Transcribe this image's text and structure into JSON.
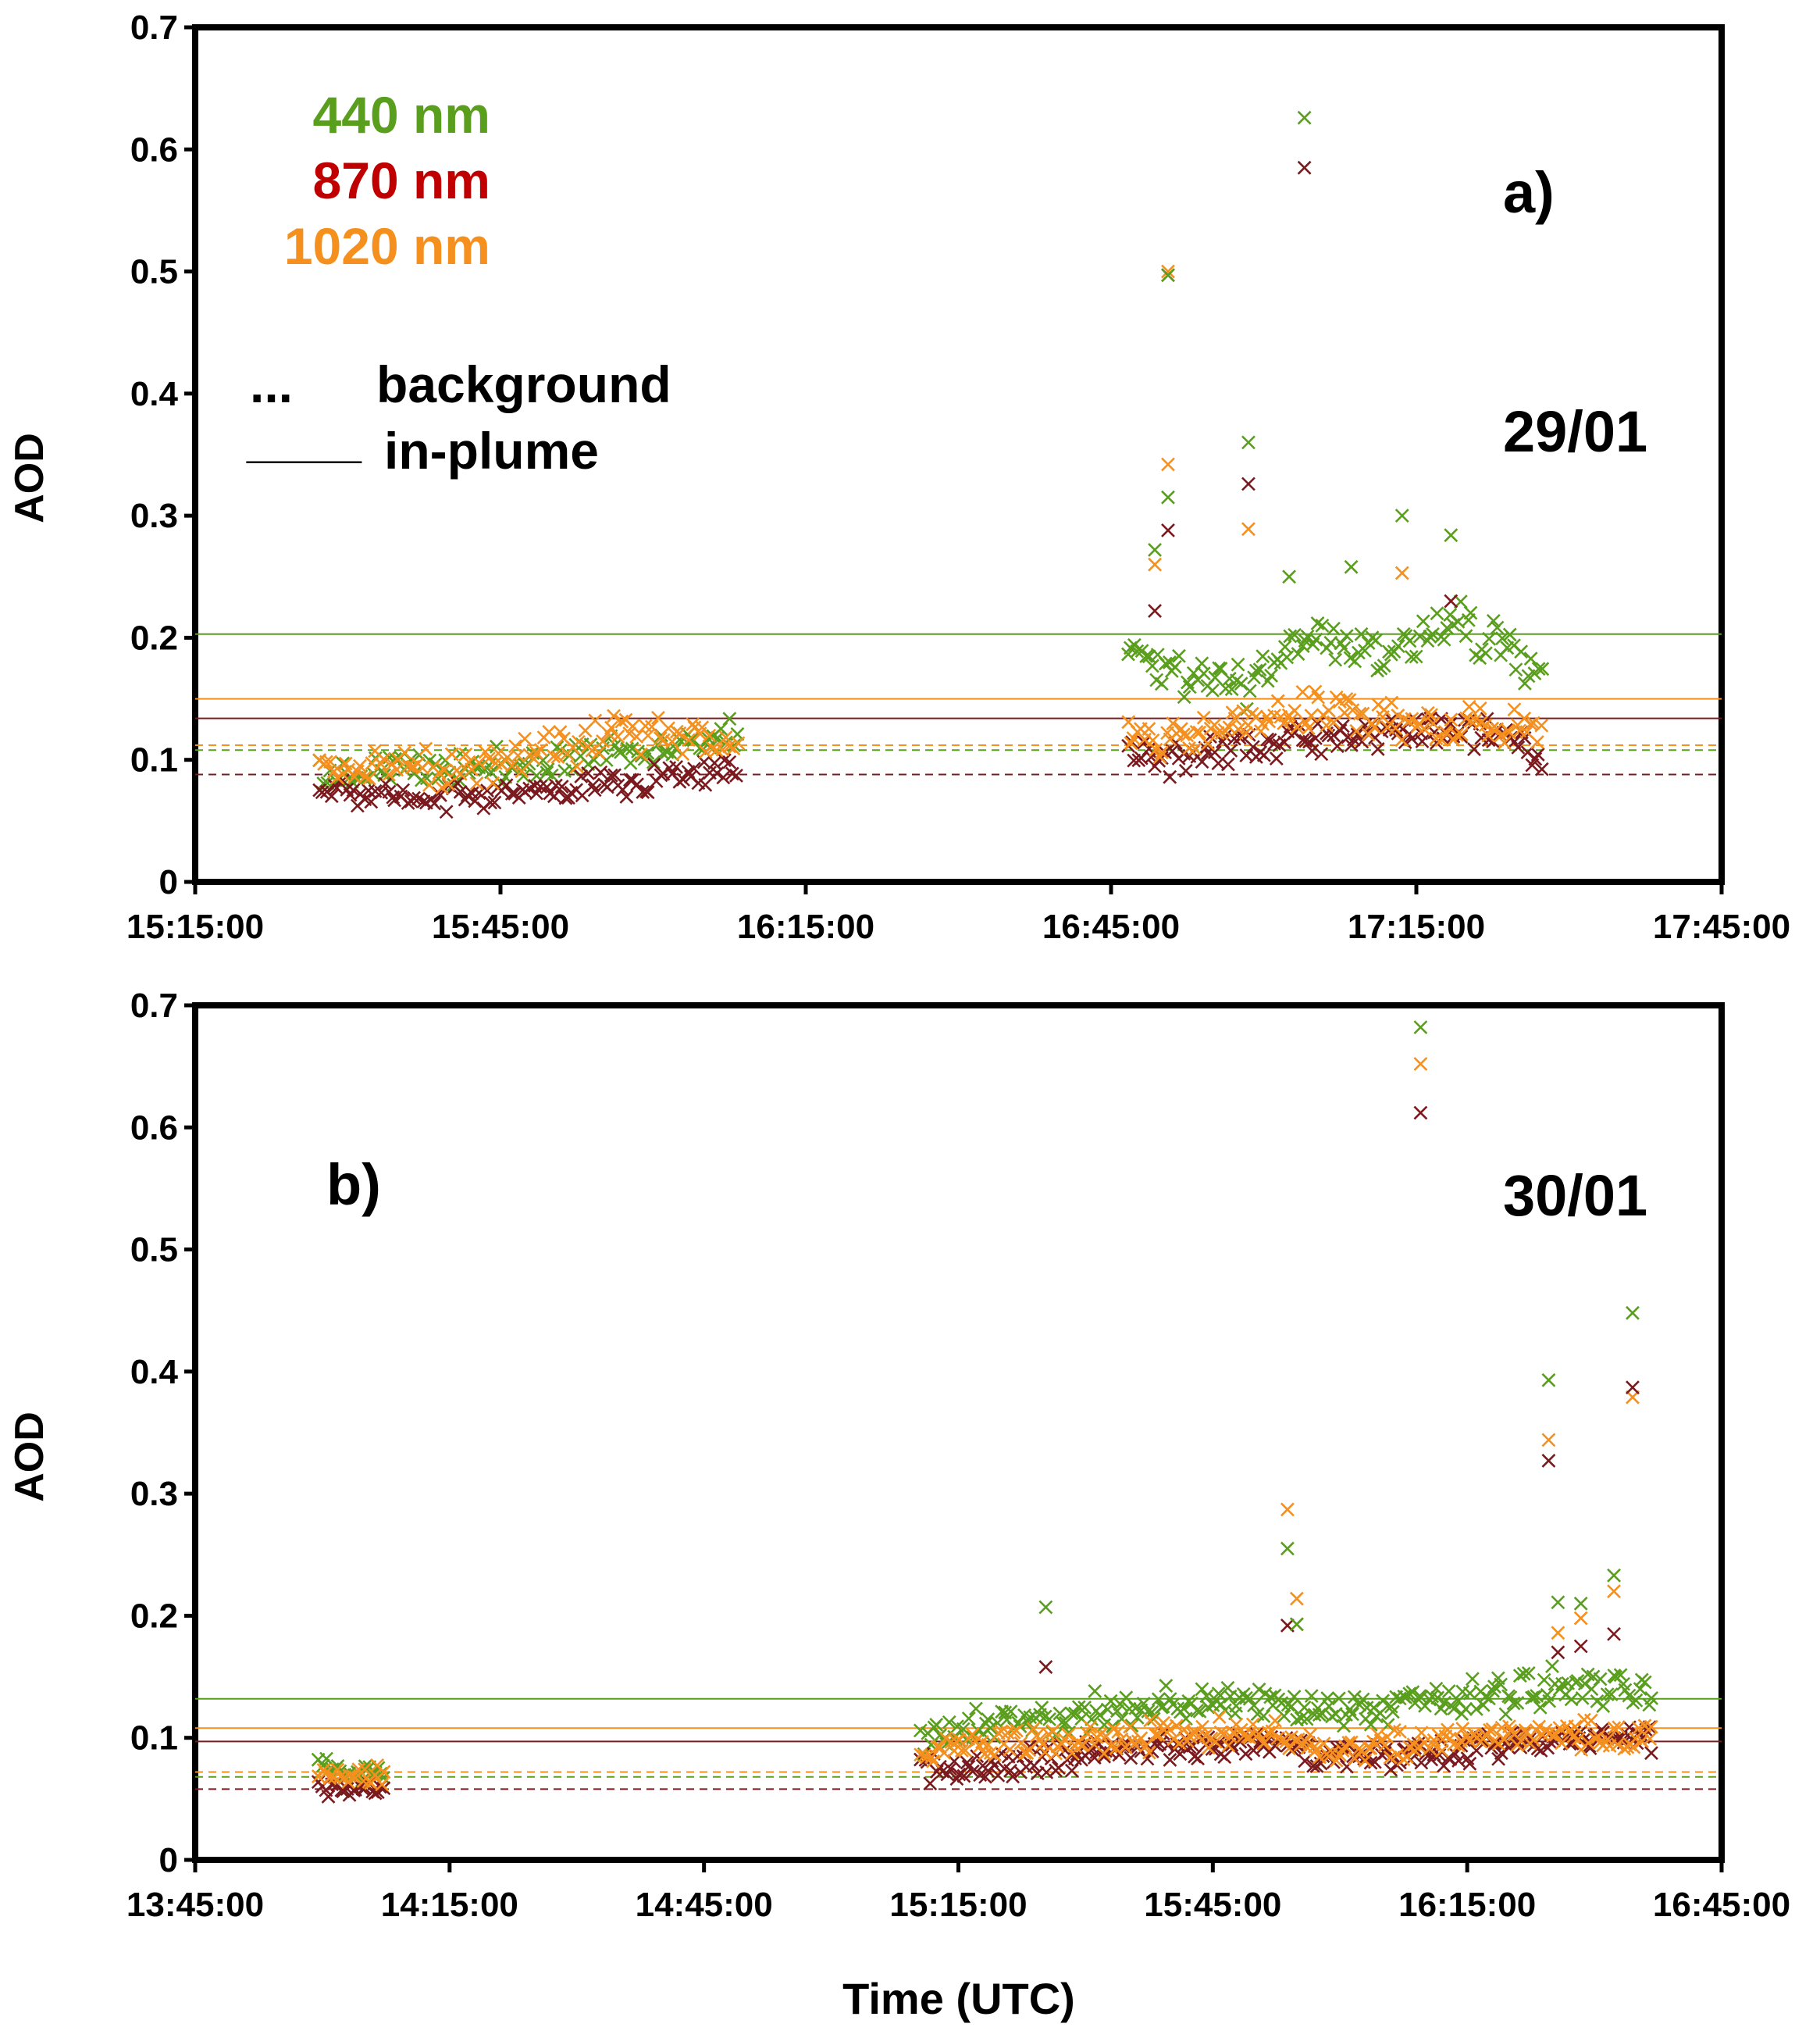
{
  "colors": {
    "w440": "#5a9e1e",
    "w870": "#7b1a1e",
    "w1020": "#f5901e",
    "legend870": "#c00000"
  },
  "xlabel": "Time (UTC)",
  "legend": {
    "w440": "440 nm",
    "w870": "870 nm",
    "w1020": "1020 nm",
    "background_symbol": "...",
    "background_label": "background",
    "inplume_symbol": "____",
    "inplume_label": "in-plume"
  },
  "chart_data": [
    {
      "type": "scatter",
      "panel": "a)",
      "date": "29/01",
      "ylabel": "AOD",
      "ylim": [
        0,
        0.7
      ],
      "yticks": [
        "0",
        "0.1",
        "0.2",
        "0.3",
        "0.4",
        "0.5",
        "0.6",
        "0.7"
      ],
      "xlim_minutes": [
        915,
        1065
      ],
      "xticks": [
        "15:15:00",
        "15:45:00",
        "16:15:00",
        "16:45:00",
        "17:15:00",
        "17:45:00"
      ],
      "reference_lines": {
        "in_plume": {
          "440": 0.203,
          "870": 0.134,
          "1020": 0.15
        },
        "background": {
          "440": 0.108,
          "870": 0.088,
          "1020": 0.112
        }
      },
      "outliers": [
        {
          "t": 1010.6,
          "440": 0.497,
          "870": 0.497,
          "1020": 0.5
        },
        {
          "t": 1024.0,
          "440": 0.626,
          "870": 0.585
        },
        {
          "t": 1010.6,
          "440": 0.315,
          "870": 0.288,
          "1020": 0.342
        },
        {
          "t": 1018.5,
          "440": 0.36,
          "870": 0.326,
          "1020": 0.289
        },
        {
          "t": 1009.3,
          "440": 0.272,
          "870": 0.222,
          "1020": 0.26
        },
        {
          "t": 1033.6,
          "440": 0.3,
          "1020": 0.253
        },
        {
          "t": 1038.4,
          "440": 0.284,
          "870": 0.23
        },
        {
          "t": 1022.5,
          "440": 0.25
        },
        {
          "t": 1028.6,
          "440": 0.258
        }
      ],
      "series": [
        {
          "name": "440 nm",
          "segments": [
            {
              "t0": 927,
              "t1": 968.5,
              "base": [
                [
                  927,
                  0.085
                ],
                [
                  937,
                  0.09
                ],
                [
                  947,
                  0.095
                ],
                [
                  957,
                  0.11
                ],
                [
                  968.5,
                  0.12
                ]
              ],
              "jitter": 0.018,
              "n": 110
            },
            {
              "t0": 1006.5,
              "t1": 1047.5,
              "base": [
                [
                  1006.5,
                  0.19
                ],
                [
                  1012,
                  0.17
                ],
                [
                  1018,
                  0.16
                ],
                [
                  1025,
                  0.2
                ],
                [
                  1032,
                  0.19
                ],
                [
                  1040,
                  0.21
                ],
                [
                  1047.5,
                  0.17
                ]
              ],
              "jitter": 0.025,
              "n": 120
            }
          ]
        },
        {
          "name": "870 nm",
          "segments": [
            {
              "t0": 927,
              "t1": 968.5,
              "base": [
                [
                  927,
                  0.075
                ],
                [
                  937,
                  0.068
                ],
                [
                  947,
                  0.075
                ],
                [
                  957,
                  0.08
                ],
                [
                  968.5,
                  0.095
                ]
              ],
              "jitter": 0.015,
              "n": 110
            },
            {
              "t0": 1006.5,
              "t1": 1047.5,
              "base": [
                [
                  1006.5,
                  0.11
                ],
                [
                  1012,
                  0.1
                ],
                [
                  1018,
                  0.105
                ],
                [
                  1025,
                  0.12
                ],
                [
                  1032,
                  0.12
                ],
                [
                  1040,
                  0.125
                ],
                [
                  1047.5,
                  0.105
                ]
              ],
              "jitter": 0.018,
              "n": 120
            }
          ]
        },
        {
          "name": "1020 nm",
          "segments": [
            {
              "t0": 927,
              "t1": 968.5,
              "base": [
                [
                  927,
                  0.095
                ],
                [
                  937,
                  0.092
                ],
                [
                  947,
                  0.1
                ],
                [
                  957,
                  0.12
                ],
                [
                  968.5,
                  0.115
                ]
              ],
              "jitter": 0.02,
              "n": 110
            },
            {
              "t0": 1006.5,
              "t1": 1047.5,
              "base": [
                [
                  1006.5,
                  0.125
                ],
                [
                  1012,
                  0.115
                ],
                [
                  1018,
                  0.13
                ],
                [
                  1025,
                  0.14
                ],
                [
                  1032,
                  0.135
                ],
                [
                  1040,
                  0.13
                ],
                [
                  1047.5,
                  0.12
                ]
              ],
              "jitter": 0.02,
              "n": 120
            }
          ]
        }
      ]
    },
    {
      "type": "scatter",
      "panel": "b)",
      "date": "30/01",
      "ylabel": "AOD",
      "ylim": [
        0,
        0.7
      ],
      "yticks": [
        "0",
        "0.1",
        "0.2",
        "0.3",
        "0.4",
        "0.5",
        "0.6",
        "0.7"
      ],
      "xlim_minutes": [
        825,
        1005
      ],
      "xticks": [
        "13:45:00",
        "14:15:00",
        "14:45:00",
        "15:15:00",
        "15:45:00",
        "16:15:00",
        "16:45:00"
      ],
      "reference_lines": {
        "in_plume": {
          "440": 0.132,
          "870": 0.097,
          "1020": 0.108
        },
        "background": {
          "440": 0.068,
          "870": 0.058,
          "1020": 0.072
        }
      },
      "outliers": [
        {
          "t": 969.5,
          "440": 0.682,
          "870": 0.612,
          "1020": 0.652
        },
        {
          "t": 994.5,
          "440": 0.448,
          "870": 0.387,
          "1020": 0.379
        },
        {
          "t": 984.6,
          "440": 0.393,
          "870": 0.327,
          "1020": 0.344
        },
        {
          "t": 953.8,
          "440": 0.255,
          "870": 0.192,
          "1020": 0.287
        },
        {
          "t": 954.9,
          "440": 0.193,
          "870": 0.193,
          "1020": 0.214
        },
        {
          "t": 925.3,
          "440": 0.207,
          "870": 0.158
        },
        {
          "t": 992.3,
          "440": 0.233,
          "870": 0.185,
          "1020": 0.22
        },
        {
          "t": 988.4,
          "440": 0.21,
          "870": 0.175,
          "1020": 0.198
        },
        {
          "t": 985.7,
          "440": 0.211,
          "870": 0.17,
          "1020": 0.186
        }
      ],
      "series": [
        {
          "name": "440 nm",
          "segments": [
            {
              "t0": 839.5,
              "t1": 847.5,
              "base": [
                [
                  839.5,
                  0.08
                ],
                [
                  843,
                  0.068
                ],
                [
                  847.5,
                  0.072
                ]
              ],
              "jitter": 0.01,
              "n": 22
            },
            {
              "t0": 910.5,
              "t1": 997,
              "base": [
                [
                  910.5,
                  0.1
                ],
                [
                  920,
                  0.11
                ],
                [
                  935,
                  0.125
                ],
                [
                  950,
                  0.13
                ],
                [
                  960,
                  0.12
                ],
                [
                  970,
                  0.13
                ],
                [
                  985,
                  0.14
                ],
                [
                  997,
                  0.135
                ]
              ],
              "jitter": 0.02,
              "n": 230
            }
          ]
        },
        {
          "name": "870 nm",
          "segments": [
            {
              "t0": 839.5,
              "t1": 847.5,
              "base": [
                [
                  839.5,
                  0.06
                ],
                [
                  843,
                  0.055
                ],
                [
                  847.5,
                  0.06
                ]
              ],
              "jitter": 0.009,
              "n": 22
            },
            {
              "t0": 910.5,
              "t1": 997,
              "base": [
                [
                  910.5,
                  0.075
                ],
                [
                  920,
                  0.078
                ],
                [
                  935,
                  0.09
                ],
                [
                  950,
                  0.095
                ],
                [
                  960,
                  0.082
                ],
                [
                  970,
                  0.088
                ],
                [
                  985,
                  0.1
                ],
                [
                  997,
                  0.098
                ]
              ],
              "jitter": 0.014,
              "n": 230
            }
          ]
        },
        {
          "name": "1020 nm",
          "segments": [
            {
              "t0": 839.5,
              "t1": 847.5,
              "base": [
                [
                  839.5,
                  0.072
                ],
                [
                  843,
                  0.066
                ],
                [
                  847.5,
                  0.07
                ]
              ],
              "jitter": 0.01,
              "n": 22
            },
            {
              "t0": 910.5,
              "t1": 997,
              "base": [
                [
                  910.5,
                  0.09
                ],
                [
                  920,
                  0.095
                ],
                [
                  935,
                  0.1
                ],
                [
                  950,
                  0.105
                ],
                [
                  960,
                  0.09
                ],
                [
                  970,
                  0.095
                ],
                [
                  985,
                  0.105
                ],
                [
                  997,
                  0.1
                ]
              ],
              "jitter": 0.014,
              "n": 230
            }
          ]
        }
      ]
    }
  ]
}
